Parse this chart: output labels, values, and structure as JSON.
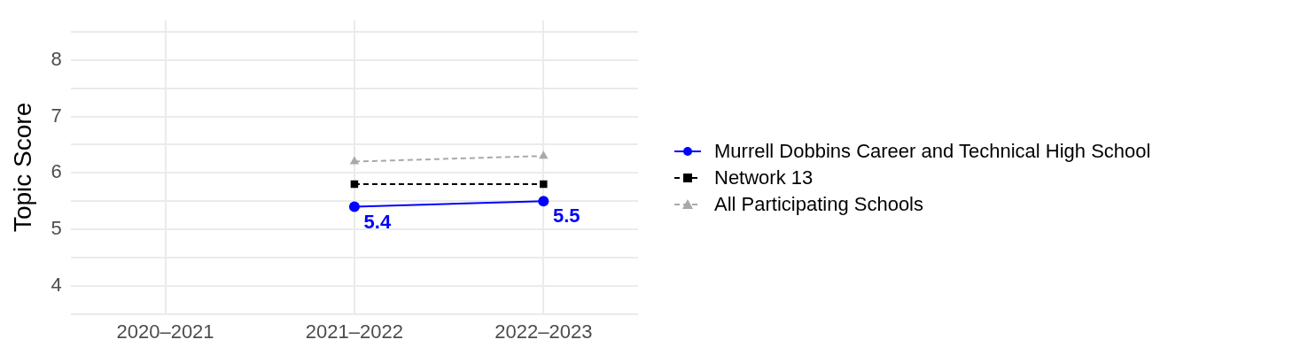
{
  "chart_data": {
    "type": "line",
    "ylabel": "Topic Score",
    "categories": [
      "2020–2021",
      "2021–2022",
      "2022–2023"
    ],
    "series": [
      {
        "name": "Murrell Dobbins Career and Technical High School",
        "color": "#0000ff",
        "values": [
          null,
          5.4,
          5.5
        ],
        "marker": "circle",
        "line_style": "solid",
        "value_labels": [
          null,
          "5.4",
          "5.5"
        ]
      },
      {
        "name": "Network 13",
        "color": "#000000",
        "values": [
          null,
          5.8,
          5.8
        ],
        "marker": "square",
        "line_style": "dashed"
      },
      {
        "name": "All Participating Schools",
        "color": "#a9a9a9",
        "values": [
          null,
          6.2,
          6.3
        ],
        "marker": "triangle",
        "line_style": "dashed"
      }
    ],
    "ylim": [
      3.5,
      8.7
    ],
    "yticks": [
      {
        "value": 3.5,
        "label": null
      },
      4,
      {
        "value": 4.5,
        "label": null
      },
      5,
      {
        "value": 5.5,
        "label": null
      },
      6,
      {
        "value": 6.5,
        "label": null
      },
      7,
      {
        "value": 7.5,
        "label": null
      },
      8,
      {
        "value": 8.5,
        "label": null
      }
    ],
    "grid": true,
    "legend": "right"
  }
}
